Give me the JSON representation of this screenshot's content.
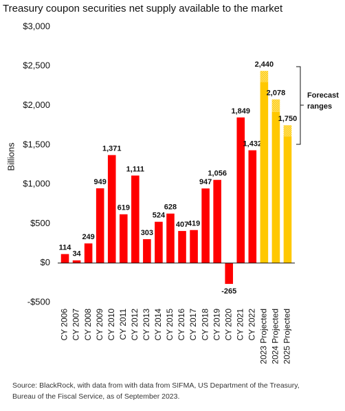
{
  "chart_data": {
    "type": "bar",
    "title": "Treasury coupon securities net supply available to the market",
    "y_label": "Billions",
    "categories": [
      "CY 2006",
      "CY 2007",
      "CY 2008",
      "CY 2009",
      "CY 2010",
      "CY 2011",
      "CY 2012",
      "CY 2013",
      "CY 2014",
      "CY 2015",
      "CY 2016",
      "CY 2017",
      "CY 2018",
      "CY 2019",
      "CY 2020",
      "CY 2021",
      "CY 2022",
      "2023 Projected",
      "2024 Projected",
      "2025 Projected"
    ],
    "values": [
      114,
      34,
      249,
      949,
      1371,
      619,
      1111,
      303,
      524,
      628,
      407,
      419,
      947,
      1056,
      -265,
      1849,
      1432,
      2440,
      2078,
      1750
    ],
    "value_labels": [
      "114",
      "34",
      "249",
      "949",
      "1,371",
      "619",
      "1,111",
      "303",
      "524",
      "628",
      "407",
      "419",
      "947",
      "1,056",
      "-265",
      "1,849",
      "1,432",
      "2,440",
      "2,078",
      "1,750"
    ],
    "range_low": [
      null,
      null,
      null,
      null,
      null,
      null,
      null,
      null,
      null,
      null,
      null,
      null,
      null,
      null,
      null,
      null,
      null,
      2300,
      1920,
      1610
    ],
    "colors": [
      "#ff0000",
      "#ff0000",
      "#ff0000",
      "#ff0000",
      "#ff0000",
      "#ff0000",
      "#ff0000",
      "#ff0000",
      "#ff0000",
      "#ff0000",
      "#ff0000",
      "#ff0000",
      "#ff0000",
      "#ff0000",
      "#ff0000",
      "#ff0000",
      "#ff0000",
      "#ffc800",
      "#ffc800",
      "#ffc800"
    ],
    "ylim": [
      -500,
      3000
    ],
    "yticks": [
      {
        "value": -500,
        "label": "-$500"
      },
      {
        "value": 0,
        "label": "$0"
      },
      {
        "value": 500,
        "label": "$500"
      },
      {
        "value": 1000,
        "label": "$1,000"
      },
      {
        "value": 1500,
        "label": "$1,500"
      },
      {
        "value": 2000,
        "label": "$2,000"
      },
      {
        "value": 2500,
        "label": "$2,500"
      },
      {
        "value": 3000,
        "label": "$3,000"
      }
    ],
    "grid": false,
    "annotation": [
      "Forecast",
      "ranges"
    ],
    "source": [
      "Source: BlackRock, with data from with data from SIFMA, US Department of the Treasury,",
      "Bureau of the Fiscal Service, as of September 2023."
    ]
  }
}
